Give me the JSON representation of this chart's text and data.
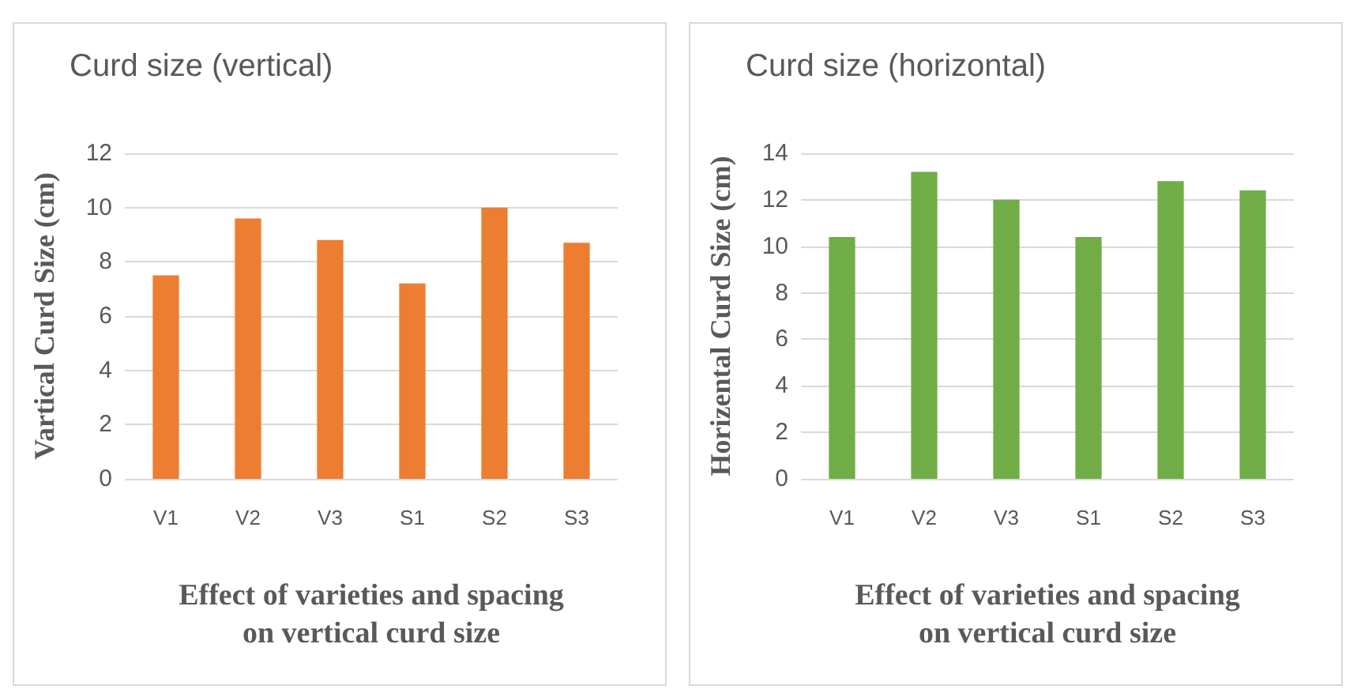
{
  "chart_data": [
    {
      "type": "bar",
      "title": "Curd size (vertical)",
      "xlabel": "Effect of varieties and spacing\non vertical curd size",
      "ylabel": "Vartical Curd Size (cm)",
      "categories": [
        "V1",
        "V2",
        "V3",
        "S1",
        "S2",
        "S3"
      ],
      "values": [
        7.5,
        9.6,
        8.8,
        7.2,
        10.0,
        8.7
      ],
      "color": "#ed7d31",
      "ylim": [
        0,
        12
      ],
      "yticks": [
        0,
        2,
        4,
        6,
        8,
        10,
        12
      ],
      "grid": "y"
    },
    {
      "type": "bar",
      "title": "Curd size (horizontal)",
      "xlabel": "Effect of varieties and spacing\non vertical curd size",
      "ylabel": "Horizental Curd Size (cm)",
      "categories": [
        "V1",
        "V2",
        "V3",
        "S1",
        "S2",
        "S3"
      ],
      "values": [
        10.4,
        13.2,
        12.0,
        10.4,
        12.8,
        12.4
      ],
      "color": "#70ad47",
      "ylim": [
        0,
        14
      ],
      "yticks": [
        0,
        2,
        4,
        6,
        8,
        10,
        12,
        14
      ],
      "grid": "y"
    }
  ]
}
